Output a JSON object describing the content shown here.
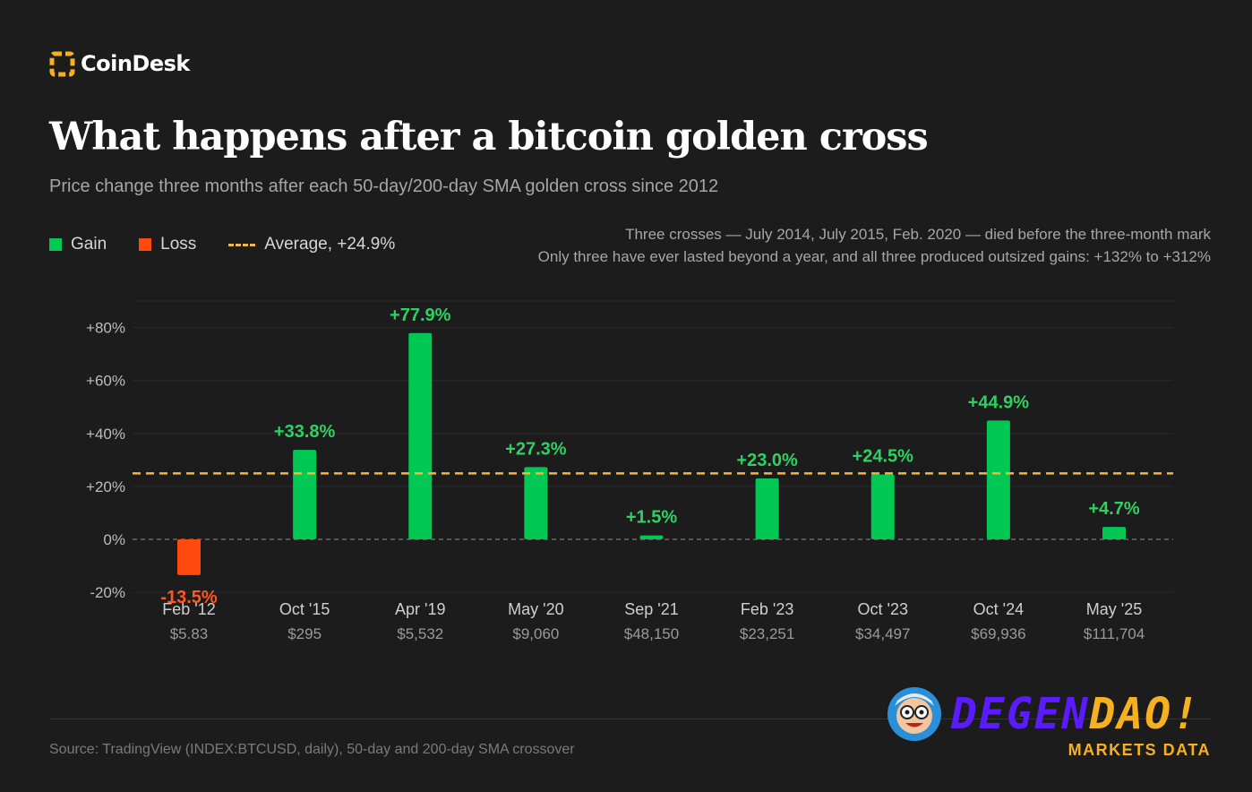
{
  "header": {
    "logo_text": "CoinDesk",
    "title": "What happens after a bitcoin golden cross",
    "subtitle": "Price change three months after each 50-day/200-day SMA golden cross since 2012"
  },
  "legend": {
    "gain_label": "Gain",
    "loss_label": "Loss",
    "average_label": "Average, +24.9%"
  },
  "notes": {
    "line1": "Three crosses — July 2014, July 2015, Feb. 2020 — died before the three-month mark",
    "line2": "Only three have ever lasted beyond a year, and all three produced outsized gains: +132% to +312%"
  },
  "chart_data": {
    "type": "bar",
    "categories": [
      "Feb '12",
      "Oct '15",
      "Apr '19",
      "May '20",
      "Sep '21",
      "Feb '23",
      "Oct '23",
      "Oct '24",
      "May '25"
    ],
    "prices": [
      "$5.83",
      "$295",
      "$5,532",
      "$9,060",
      "$48,150",
      "$23,251",
      "$34,497",
      "$69,936",
      "$111,704"
    ],
    "values": [
      -13.5,
      33.8,
      77.9,
      27.3,
      1.5,
      23.0,
      24.5,
      44.9,
      4.7
    ],
    "value_labels": [
      "-13.5%",
      "+33.8%",
      "+77.9%",
      "+27.3%",
      "+1.5%",
      "+23.0%",
      "+24.5%",
      "+44.9%",
      "+4.7%"
    ],
    "average": 24.9,
    "ylim": [
      -20,
      80
    ],
    "yticks": [
      80,
      60,
      40,
      20,
      0,
      -20
    ],
    "ytick_labels": [
      "+80%",
      "+60%",
      "+40%",
      "+20%",
      "0%",
      "-20%"
    ],
    "grid": true,
    "colors": {
      "gain": "#00c853",
      "loss": "#ff4a0f",
      "average": "#f4b63c",
      "gain_label": "#2ed162",
      "loss_label": "#ff5722"
    }
  },
  "footer": {
    "source": "Source: TradingView (INDEX:BTCUSD, daily), 50-day and 200-day SMA crossover",
    "brand_part1": "DEGEN",
    "brand_part2": "DAO!",
    "brand_sub": "MARKETS DATA"
  }
}
